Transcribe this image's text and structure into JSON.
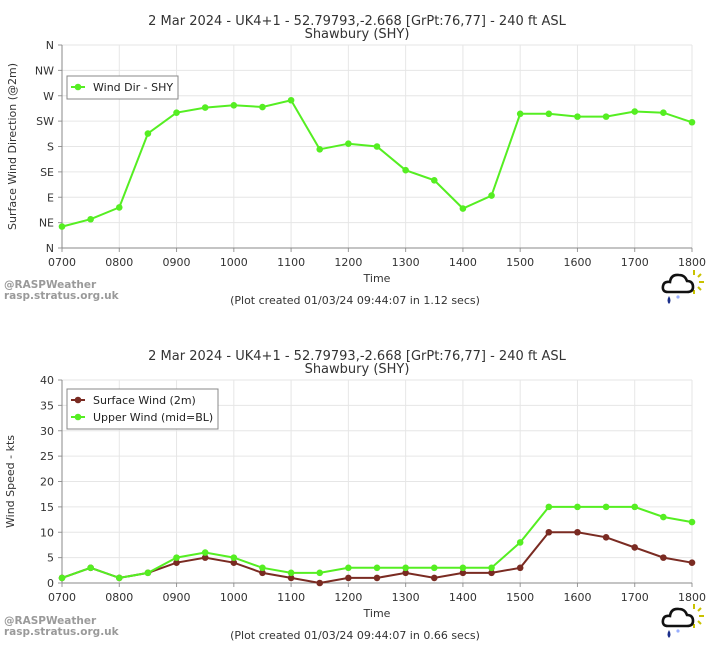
{
  "chart_data": [
    {
      "type": "line",
      "title": "2 Mar 2024 - UK4+1 - 52.79793,-2.668 [GrPt:76,77]  - 240 ft ASL",
      "subtitle": "Shawbury (SHY)",
      "xlabel": "Time",
      "ylabel": "Surface Wind Direction (@2m)",
      "x": [
        "0700",
        "0730",
        "0800",
        "0830",
        "0900",
        "0930",
        "1000",
        "1030",
        "1100",
        "1130",
        "1200",
        "1230",
        "1300",
        "1330",
        "1400",
        "1430",
        "1500",
        "1530",
        "1600",
        "1630",
        "1700",
        "1730",
        "1800"
      ],
      "x_ticks": [
        "0700",
        "0800",
        "0900",
        "1000",
        "1100",
        "1200",
        "1300",
        "1400",
        "1500",
        "1600",
        "1700",
        "1800"
      ],
      "y_categories": [
        "N",
        "NE",
        "E",
        "SE",
        "S",
        "SW",
        "W",
        "NW",
        "N"
      ],
      "ylim": [
        0,
        360
      ],
      "series": [
        {
          "name": "Wind Dir - SHY",
          "color": "#55ee22",
          "values": [
            38,
            51,
            72,
            203,
            240,
            249,
            253,
            250,
            262,
            175,
            185,
            180,
            138,
            120,
            70,
            93,
            238,
            238,
            233,
            233,
            242,
            240,
            223
          ]
        }
      ],
      "legend": "top-left",
      "grid": true,
      "footer": "(Plot created 01/03/24 09:44:07 in 1.12 secs)"
    },
    {
      "type": "line",
      "title": "2 Mar 2024 - UK4+1 - 52.79793,-2.668 [GrPt:76,77]  - 240 ft ASL",
      "subtitle": "Shawbury (SHY)",
      "xlabel": "Time",
      "ylabel": "Wind Speed - kts",
      "x": [
        "0700",
        "0730",
        "0800",
        "0830",
        "0900",
        "0930",
        "1000",
        "1030",
        "1100",
        "1130",
        "1200",
        "1230",
        "1300",
        "1330",
        "1400",
        "1430",
        "1500",
        "1530",
        "1600",
        "1630",
        "1700",
        "1730",
        "1800"
      ],
      "x_ticks": [
        "0700",
        "0800",
        "0900",
        "1000",
        "1100",
        "1200",
        "1300",
        "1400",
        "1500",
        "1600",
        "1700",
        "1800"
      ],
      "y_ticks": [
        "0",
        "5",
        "10",
        "15",
        "20",
        "25",
        "30",
        "35",
        "40"
      ],
      "ylim": [
        0,
        40
      ],
      "series": [
        {
          "name": "Surface Wind (2m)",
          "color": "#7a2b22",
          "values": [
            1,
            3,
            1,
            2,
            4,
            5,
            4,
            2,
            1,
            0,
            1,
            1,
            2,
            1,
            2,
            2,
            3,
            10,
            10,
            9,
            7,
            5,
            4
          ]
        },
        {
          "name": "Upper Wind (mid=BL)",
          "color": "#55ee22",
          "values": [
            1,
            3,
            1,
            2,
            5,
            6,
            5,
            3,
            2,
            2,
            3,
            3,
            3,
            3,
            3,
            3,
            8,
            15,
            15,
            15,
            15,
            13,
            12
          ]
        }
      ],
      "legend": "top-left",
      "grid": true,
      "footer": "(Plot created 01/03/24 09:44:07 in 0.66 secs)"
    }
  ],
  "credits": {
    "line1": "@RASPWeather",
    "line2": "rasp.stratus.org.uk"
  },
  "logo_icon": "cloud-sun-logo-icon"
}
